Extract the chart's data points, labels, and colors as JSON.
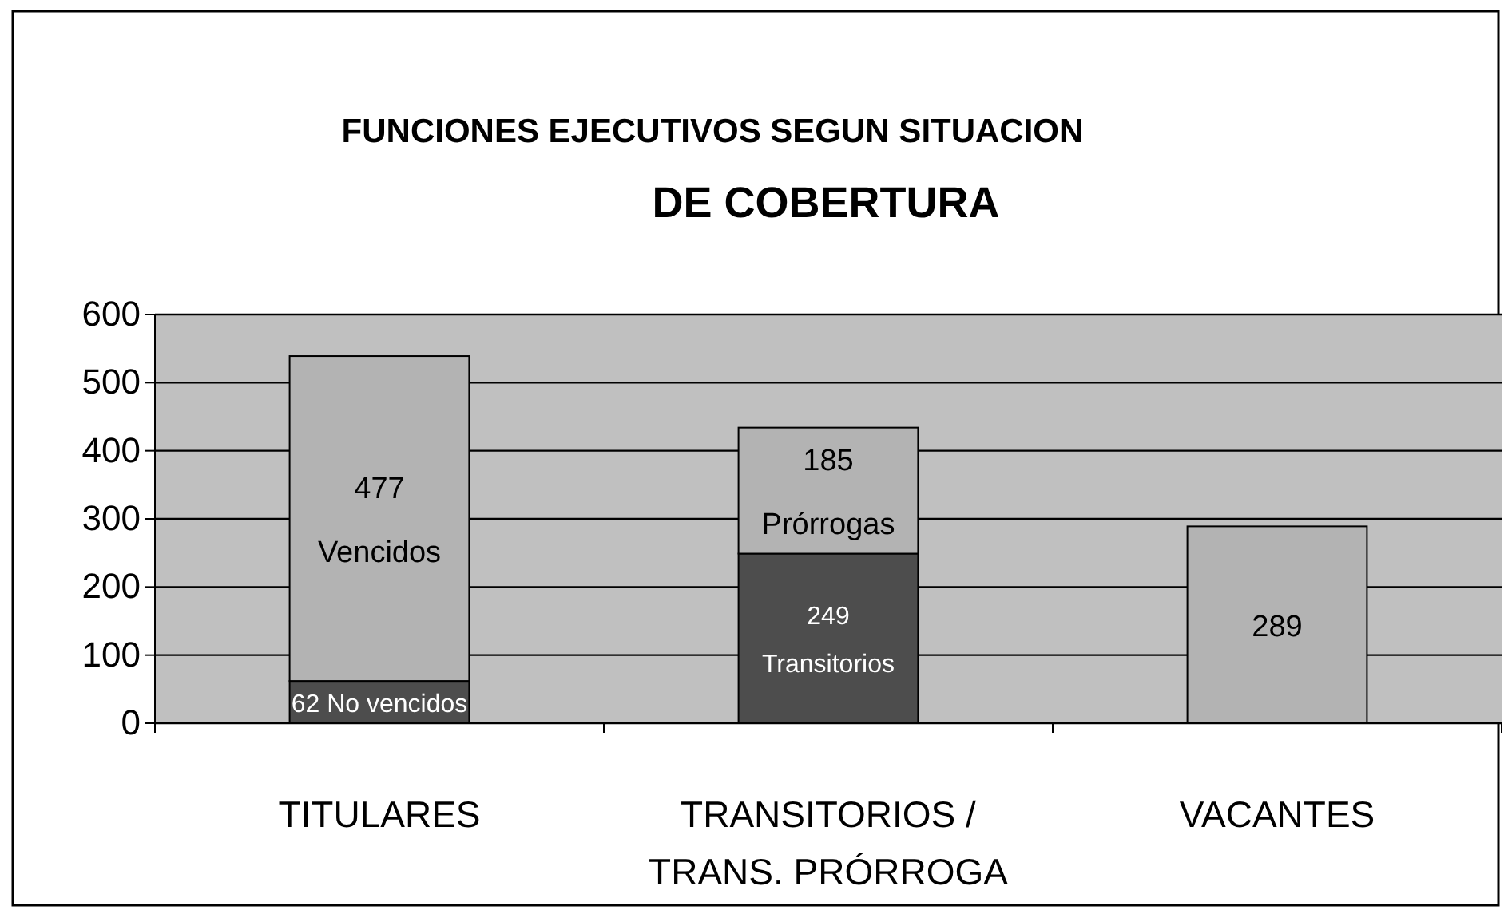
{
  "chart_data": {
    "type": "bar",
    "stacked": true,
    "title": "FUNCIONES EJECUTIVOS SEGUN SITUACION\nDE COBERTURA",
    "categories": [
      "TITULARES",
      "TRANSITORIOS /\nTRANS. PRÓRROGA",
      "VACANTES"
    ],
    "series": [
      {
        "color": "#4d4d4d",
        "values": [
          62,
          249,
          null
        ],
        "value_labels": [
          "62 No vencidos",
          "249 Transitorios",
          null
        ]
      },
      {
        "color": "#b3b3b3",
        "values": [
          477,
          185,
          289
        ],
        "value_labels": [
          "477 Vencidos",
          "185 Prórrogas",
          "289"
        ]
      }
    ],
    "ylim": [
      0,
      600
    ],
    "yticks": [
      0,
      100,
      200,
      300,
      400,
      500,
      600
    ],
    "grid": "y"
  }
}
